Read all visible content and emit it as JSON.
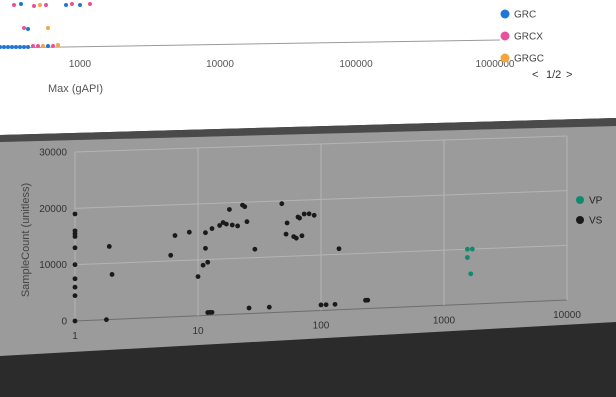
{
  "chart_data": [
    {
      "type": "scatter",
      "xlabel": "Max (gAPI)",
      "x_scale": "log",
      "x_ticks": [
        "1000",
        "10000",
        "100000",
        "1000000"
      ],
      "legend": {
        "placement": "right",
        "entries": [
          {
            "name": "GRC",
            "color": "#1f77d4"
          },
          {
            "name": "GRCX",
            "color": "#e8529a"
          },
          {
            "name": "GRGC",
            "color": "#f4a640"
          }
        ],
        "pager": {
          "prev": "<",
          "label": "1/2",
          "next": ">"
        }
      },
      "partially_visible": true
    },
    {
      "type": "scatter",
      "title": "",
      "xlabel": "",
      "ylabel": "SampleCount (unitless)",
      "x_scale": "log",
      "xlim": [
        1,
        10000
      ],
      "ylim": [
        0,
        30000
      ],
      "x_ticks": [
        "1",
        "10",
        "100",
        "1000",
        "10000"
      ],
      "y_ticks": [
        "0",
        "10000",
        "20000",
        "30000"
      ],
      "grid": true,
      "legend_placement": "right",
      "series": [
        {
          "name": "VS",
          "color": "#1a1a1a",
          "points": [
            [
              1,
              19000
            ],
            [
              1,
              16000
            ],
            [
              1,
              15500
            ],
            [
              1,
              15000
            ],
            [
              1,
              13000
            ],
            [
              1,
              10000
            ],
            [
              1,
              7500
            ],
            [
              1,
              6000
            ],
            [
              1,
              4500
            ],
            [
              1,
              0
            ],
            [
              1.8,
              0
            ],
            [
              1.9,
              13000
            ],
            [
              2,
              8000
            ],
            [
              6,
              11000
            ],
            [
              6.5,
              14500
            ],
            [
              8.5,
              15000
            ],
            [
              10,
              7000
            ],
            [
              11,
              9000
            ],
            [
              11.5,
              12000
            ],
            [
              11.5,
              14800
            ],
            [
              12,
              9500
            ],
            [
              12,
              500
            ],
            [
              12.5,
              500
            ],
            [
              13,
              500
            ],
            [
              13,
              15500
            ],
            [
              15,
              16000
            ],
            [
              16,
              16500
            ],
            [
              17,
              16200
            ],
            [
              18,
              18800
            ],
            [
              19,
              16000
            ],
            [
              21,
              15800
            ],
            [
              23,
              19500
            ],
            [
              24,
              19200
            ],
            [
              25,
              16500
            ],
            [
              26,
              1000
            ],
            [
              29,
              11500
            ],
            [
              38,
              1000
            ],
            [
              48,
              19500
            ],
            [
              52,
              14000
            ],
            [
              53,
              16000
            ],
            [
              60,
              13500
            ],
            [
              63,
              13200
            ],
            [
              65,
              17000
            ],
            [
              67,
              16800
            ],
            [
              70,
              13600
            ],
            [
              73,
              17500
            ],
            [
              80,
              17500
            ],
            [
              88,
              17200
            ],
            [
              100,
              1000
            ],
            [
              110,
              1000
            ],
            [
              130,
              1000
            ],
            [
              140,
              11000
            ],
            [
              230,
              1500
            ],
            [
              240,
              1500
            ]
          ]
        },
        {
          "name": "VP",
          "color": "#0e8a6e",
          "points": [
            [
              1550,
              10000
            ],
            [
              1700,
              10000
            ],
            [
              1550,
              8500
            ],
            [
              1650,
              5500
            ]
          ]
        }
      ]
    }
  ]
}
